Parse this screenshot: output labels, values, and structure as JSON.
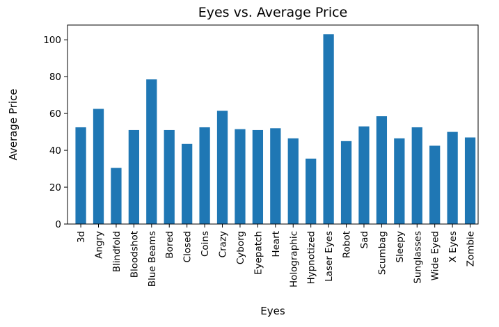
{
  "chart_data": {
    "type": "bar",
    "title": "Eyes vs. Average Price",
    "xlabel": "Eyes",
    "ylabel": "Average Price",
    "ylim": [
      0,
      108
    ],
    "yticks": [
      0,
      20,
      40,
      60,
      80,
      100
    ],
    "grid": false,
    "categories": [
      "3d",
      "Angry",
      "Blindfold",
      "Bloodshot",
      "Blue Beams",
      "Bored",
      "Closed",
      "Coins",
      "Crazy",
      "Cyborg",
      "Eyepatch",
      "Heart",
      "Holographic",
      "Hypnotized",
      "Laser Eyes",
      "Robot",
      "Sad",
      "Scumbag",
      "Sleepy",
      "Sunglasses",
      "Wide Eyed",
      "X Eyes",
      "Zombie"
    ],
    "values": [
      52.5,
      62.5,
      30.5,
      51,
      78.5,
      51,
      43.5,
      52.5,
      61.5,
      51.5,
      51,
      52,
      46.5,
      35.5,
      103,
      45,
      53,
      58.5,
      46.5,
      52.5,
      42.5,
      50,
      47
    ],
    "color": "#1f77b4"
  }
}
